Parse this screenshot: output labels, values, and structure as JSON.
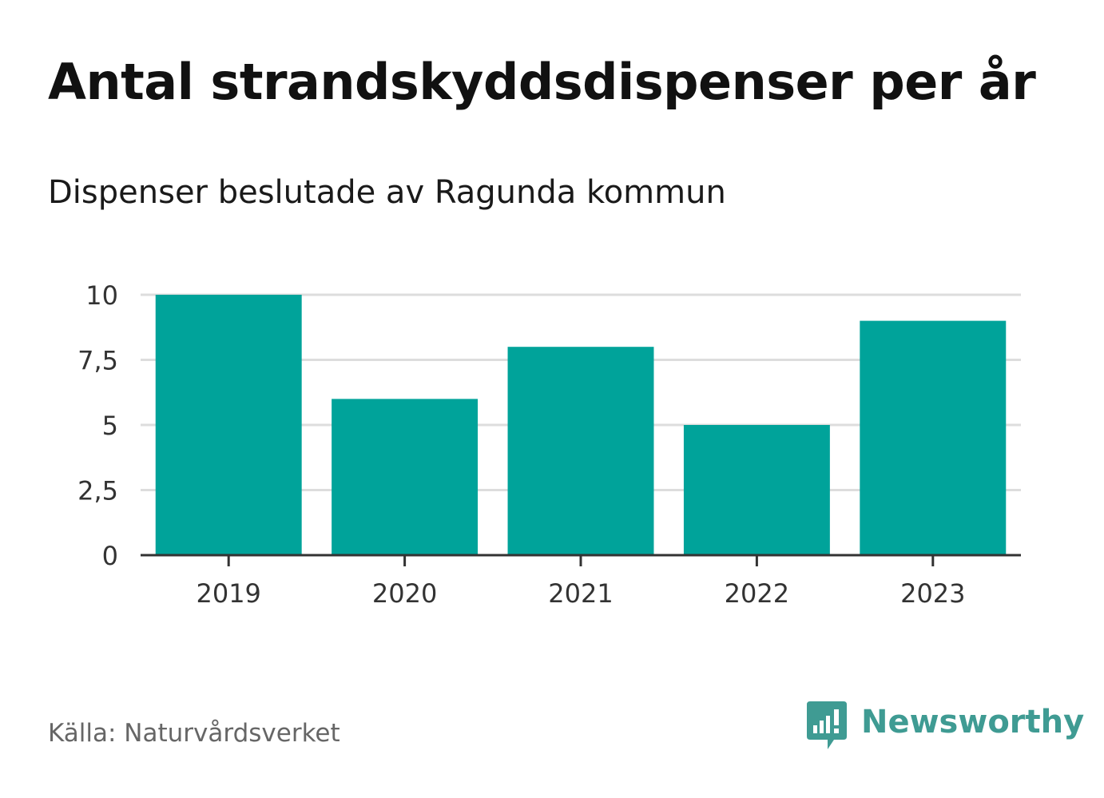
{
  "title": "Antal strandskyddsdispenser per år",
  "subtitle": "Dispenser beslutade av Ragunda kommun",
  "source": "Källa: Naturvårdsverket",
  "brand": {
    "name": "Newsworthy",
    "icon": "newsworthy-logo-icon",
    "color": "#3f9b93"
  },
  "colors": {
    "bar": "#00a39a",
    "grid": "#dddddd",
    "axis": "#333333",
    "tick_text": "#333333"
  },
  "chart_data": {
    "type": "bar",
    "title": "Antal strandskyddsdispenser per år",
    "subtitle": "Dispenser beslutade av Ragunda kommun",
    "xlabel": "",
    "ylabel": "",
    "categories": [
      "2019",
      "2020",
      "2021",
      "2022",
      "2023"
    ],
    "values": [
      10,
      6,
      8,
      5,
      9
    ],
    "ylim": [
      0,
      10
    ],
    "yticks": [
      0,
      2.5,
      5,
      7.5,
      10
    ],
    "ytick_labels": [
      "0",
      "2,5",
      "5",
      "7,5",
      "10"
    ],
    "grid": true,
    "legend": "none"
  }
}
